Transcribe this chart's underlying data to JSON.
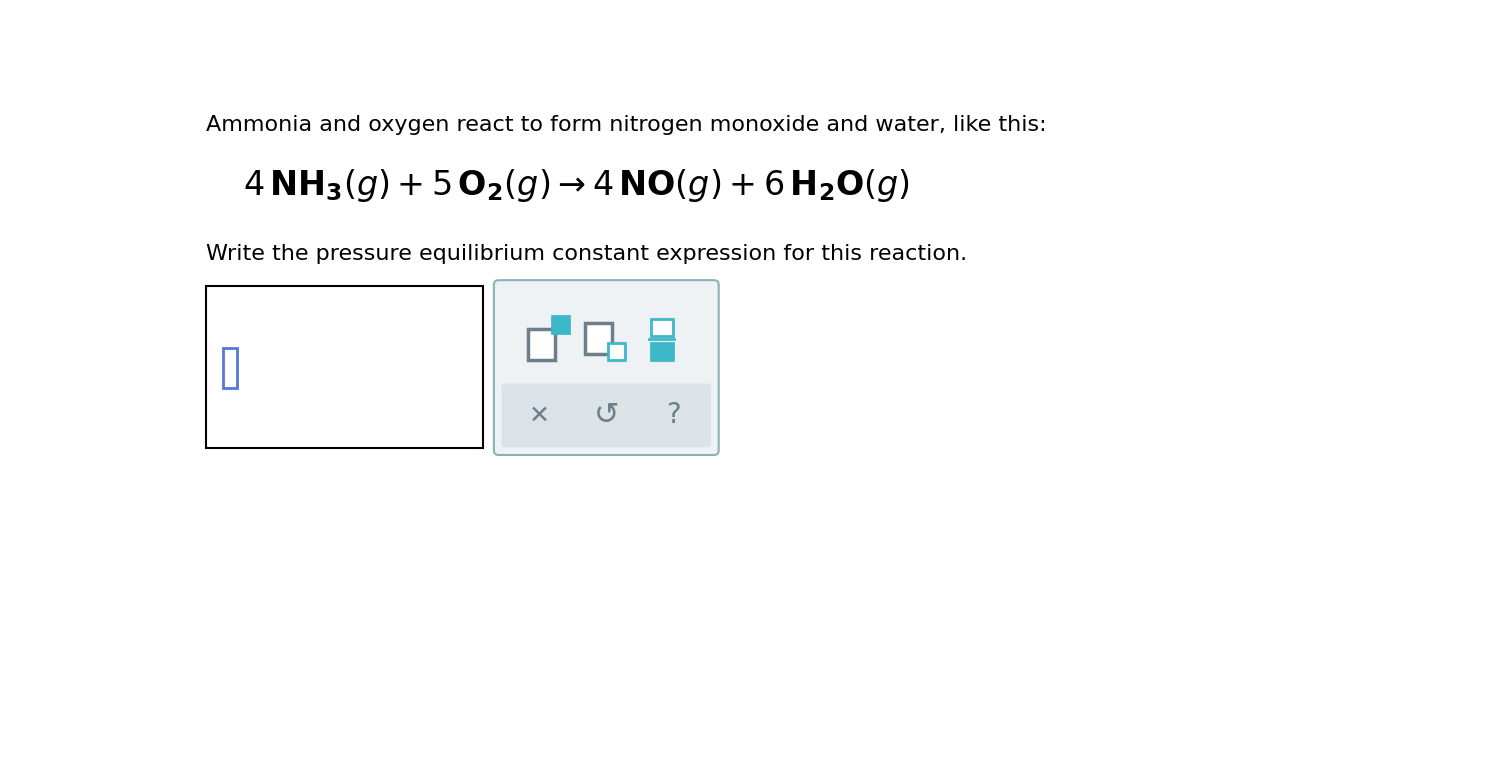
{
  "bg_color": "#ffffff",
  "text_line1": "Ammonia and oxygen react to form nitrogen monoxide and water, like this:",
  "text_line1_fontsize": 16,
  "text_line3": "Write the pressure equilibrium constant expression for this reaction.",
  "text_line3_fontsize": 16,
  "gray_square_color": "#6b7f8a",
  "teal_fill_color": "#3db8c8",
  "teal_outline_color": "#3db8c8",
  "toolbar_bg": "#eef2f4",
  "toolbar_border": "#8ab0b8",
  "bottom_panel_bg": "#dce3e7",
  "bottom_icon_color": "#6b7f8a",
  "answer_box_border": "#000000",
  "cursor_color": "#5577dd",
  "equation_fontsize": 24
}
